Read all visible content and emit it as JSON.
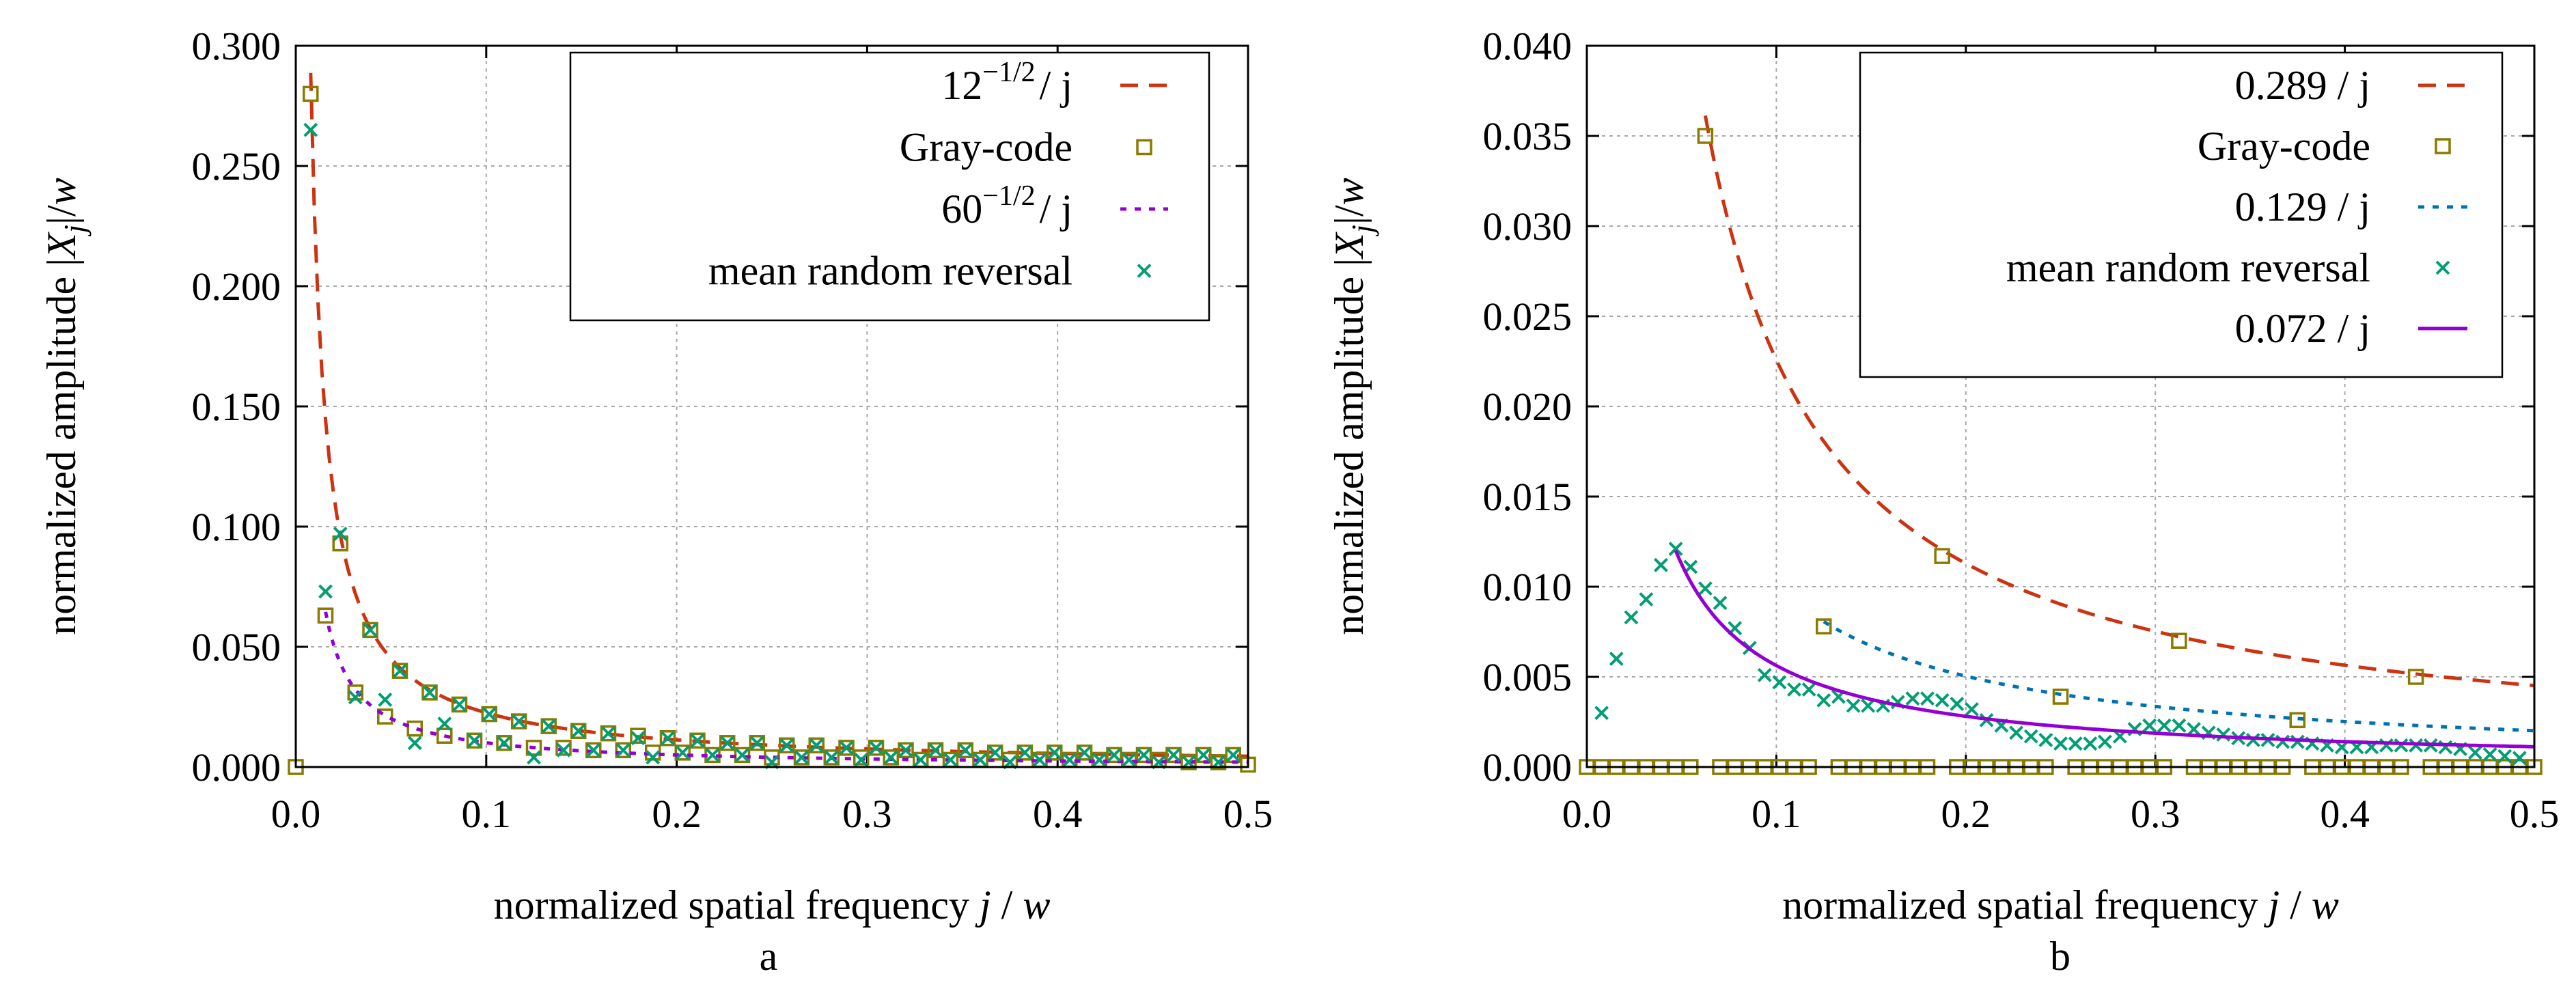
{
  "chart_data": [
    {
      "type": "scatter",
      "caption": "a",
      "xlabel": "normalized spatial frequency j / w",
      "ylabel": "normalized amplitude |X_j|/w",
      "xlim": [
        0,
        0.5
      ],
      "ylim": [
        0,
        0.3
      ],
      "xticks": [
        "0.0",
        "0.1",
        "0.2",
        "0.3",
        "0.4",
        "0.5"
      ],
      "yticks": [
        "0.000",
        "0.050",
        "0.100",
        "0.150",
        "0.200",
        "0.250",
        "0.300"
      ],
      "grid": true,
      "legend_position": "top-right",
      "series": [
        {
          "name": "12^{-1/2} / j",
          "legend_base": "12",
          "legend_exp": "−1/2",
          "legend_tail": "/ j",
          "kind": "curve",
          "coef": 0.2887,
          "scale": 128,
          "j_min": 1,
          "j_max": 64,
          "style": "dashed",
          "color": "#cc3311"
        },
        {
          "name": "Gray-code",
          "kind": "points",
          "marker": "square",
          "color": "#8a7a00",
          "x": [
            0,
            0.0078,
            0.0156,
            0.0234,
            0.0313,
            0.0391,
            0.0469,
            0.0547,
            0.0625,
            0.0703,
            0.0781,
            0.0859,
            0.0938,
            0.1016,
            0.1094,
            0.1172,
            0.125,
            0.1328,
            0.1406,
            0.1484,
            0.1563,
            0.1641,
            0.1719,
            0.1797,
            0.1875,
            0.1953,
            0.2031,
            0.2109,
            0.2188,
            0.2266,
            0.2344,
            0.2422,
            0.25,
            0.2578,
            0.2656,
            0.2734,
            0.2813,
            0.2891,
            0.2969,
            0.3047,
            0.3125,
            0.3203,
            0.3281,
            0.3359,
            0.3438,
            0.3516,
            0.3594,
            0.3672,
            0.375,
            0.3828,
            0.3906,
            0.3984,
            0.4063,
            0.4141,
            0.4219,
            0.4297,
            0.4375,
            0.4453,
            0.4531,
            0.4609,
            0.4688,
            0.4766,
            0.4844,
            0.4922,
            0.5
          ],
          "y": [
            0,
            0.28,
            0.063,
            0.093,
            0.031,
            0.057,
            0.021,
            0.04,
            0.016,
            0.031,
            0.013,
            0.026,
            0.011,
            0.022,
            0.01,
            0.019,
            0.008,
            0.017,
            0.008,
            0.015,
            0.007,
            0.014,
            0.007,
            0.013,
            0.006,
            0.012,
            0.006,
            0.011,
            0.005,
            0.01,
            0.005,
            0.01,
            0.004,
            0.009,
            0.004,
            0.009,
            0.004,
            0.008,
            0.004,
            0.008,
            0.004,
            0.007,
            0.003,
            0.007,
            0.003,
            0.007,
            0.003,
            0.006,
            0.003,
            0.006,
            0.003,
            0.006,
            0.003,
            0.006,
            0.003,
            0.005,
            0.003,
            0.005,
            0.003,
            0.005,
            0.002,
            0.005,
            0.002,
            0.005,
            0.001
          ]
        },
        {
          "name": "60^{-1/2} / j",
          "legend_base": "60",
          "legend_exp": "−1/2",
          "legend_tail": "/ j",
          "kind": "curve",
          "coef": 0.1291,
          "scale": 128,
          "j_min": 2,
          "j_max": 64,
          "style": "dotted",
          "color": "#9400d3"
        },
        {
          "name": "mean random reversal",
          "kind": "points",
          "marker": "cross",
          "color": "#009e73",
          "x": [
            0.0078,
            0.0156,
            0.0234,
            0.0313,
            0.0391,
            0.0469,
            0.0547,
            0.0625,
            0.0703,
            0.0781,
            0.0859,
            0.0938,
            0.1016,
            0.1094,
            0.1172,
            0.125,
            0.1328,
            0.1406,
            0.1484,
            0.1563,
            0.1641,
            0.1719,
            0.1797,
            0.1875,
            0.1953,
            0.2031,
            0.2109,
            0.2188,
            0.2266,
            0.2344,
            0.2422,
            0.25,
            0.2578,
            0.2656,
            0.2734,
            0.2813,
            0.2891,
            0.2969,
            0.3047,
            0.3125,
            0.3203,
            0.3281,
            0.3359,
            0.3438,
            0.3516,
            0.3594,
            0.3672,
            0.375,
            0.3828,
            0.3906,
            0.3984,
            0.4063,
            0.4141,
            0.4219,
            0.4297,
            0.4375,
            0.4453,
            0.4531,
            0.4609,
            0.4688,
            0.4766,
            0.4844,
            0.4922
          ],
          "y": [
            0.265,
            0.073,
            0.097,
            0.029,
            0.057,
            0.028,
            0.04,
            0.01,
            0.031,
            0.018,
            0.026,
            0.011,
            0.022,
            0.01,
            0.019,
            0.004,
            0.017,
            0.007,
            0.015,
            0.007,
            0.014,
            0.007,
            0.012,
            0.004,
            0.012,
            0.006,
            0.011,
            0.005,
            0.01,
            0.005,
            0.01,
            0.002,
            0.009,
            0.004,
            0.009,
            0.004,
            0.008,
            0.003,
            0.008,
            0.004,
            0.007,
            0.003,
            0.007,
            0.003,
            0.007,
            0.003,
            0.006,
            0.002,
            0.006,
            0.003,
            0.006,
            0.003,
            0.006,
            0.003,
            0.005,
            0.003,
            0.005,
            0.002,
            0.005,
            0.002,
            0.005,
            0.002,
            0.005
          ]
        }
      ]
    },
    {
      "type": "scatter",
      "caption": "b",
      "xlabel": "normalized spatial frequency j / w",
      "ylabel": "normalized amplitude |X_j|/w",
      "xlim": [
        0,
        0.5
      ],
      "ylim": [
        0,
        0.04
      ],
      "xticks": [
        "0.0",
        "0.1",
        "0.2",
        "0.3",
        "0.4",
        "0.5"
      ],
      "yticks": [
        "0.000",
        "0.005",
        "0.010",
        "0.015",
        "0.020",
        "0.025",
        "0.030",
        "0.035",
        "0.040"
      ],
      "grid": true,
      "legend_position": "top-right",
      "series": [
        {
          "name": "0.289 / j",
          "kind": "curve",
          "coef": 0.289,
          "scale": 128,
          "j_min": 8,
          "j_max": 64,
          "style": "dashed",
          "color": "#cc3311"
        },
        {
          "name": "Gray-code",
          "kind": "points",
          "marker": "square",
          "color": "#8a7a00",
          "x": [
            0,
            0.0078,
            0.0156,
            0.0234,
            0.0313,
            0.0391,
            0.0469,
            0.0547,
            0.0625,
            0.0703,
            0.0781,
            0.0859,
            0.0938,
            0.1016,
            0.1094,
            0.1172,
            0.125,
            0.1328,
            0.1406,
            0.1484,
            0.1563,
            0.1641,
            0.1719,
            0.1797,
            0.1875,
            0.1953,
            0.2031,
            0.2109,
            0.2188,
            0.2266,
            0.2344,
            0.2422,
            0.25,
            0.2578,
            0.2656,
            0.2734,
            0.2813,
            0.2891,
            0.2969,
            0.3047,
            0.3125,
            0.3203,
            0.3281,
            0.3359,
            0.3438,
            0.3516,
            0.3594,
            0.3672,
            0.375,
            0.3828,
            0.3906,
            0.3984,
            0.4063,
            0.4141,
            0.4219,
            0.4297,
            0.4375,
            0.4453,
            0.4531,
            0.4609,
            0.4688,
            0.4766,
            0.4844,
            0.4922,
            0.5
          ],
          "y": [
            0,
            0,
            0,
            0,
            0,
            0,
            0,
            0,
            0.035,
            0,
            0,
            0,
            0,
            0,
            0,
            0,
            0.0078,
            0,
            0,
            0,
            0,
            0,
            0,
            0,
            0.0117,
            0,
            0,
            0,
            0,
            0,
            0,
            0,
            0.0039,
            0,
            0,
            0,
            0,
            0,
            0,
            0,
            0.007,
            0,
            0,
            0,
            0,
            0,
            0,
            0,
            0.0026,
            0,
            0,
            0,
            0,
            0,
            0,
            0,
            0.005,
            0,
            0,
            0,
            0,
            0,
            0,
            0,
            0
          ]
        },
        {
          "name": "0.129 / j",
          "kind": "curve",
          "coef": 0.129,
          "scale": 128,
          "j_min": 16,
          "j_max": 64,
          "style": "dotted",
          "color": "#0072b2"
        },
        {
          "name": "mean random reversal",
          "kind": "points",
          "marker": "cross",
          "color": "#009e73",
          "x": [
            0.0078,
            0.0156,
            0.0234,
            0.0313,
            0.0391,
            0.0469,
            0.0547,
            0.0625,
            0.0703,
            0.0781,
            0.0859,
            0.0938,
            0.1016,
            0.1094,
            0.1172,
            0.125,
            0.1328,
            0.1406,
            0.1484,
            0.1563,
            0.1641,
            0.1719,
            0.1797,
            0.1875,
            0.1953,
            0.2031,
            0.2109,
            0.2188,
            0.2266,
            0.2344,
            0.2422,
            0.25,
            0.2578,
            0.2656,
            0.2734,
            0.2813,
            0.2891,
            0.2969,
            0.3047,
            0.3125,
            0.3203,
            0.3281,
            0.3359,
            0.3438,
            0.3516,
            0.3594,
            0.3672,
            0.375,
            0.3828,
            0.3906,
            0.3984,
            0.4063,
            0.4141,
            0.4219,
            0.4297,
            0.4375,
            0.4453,
            0.4531,
            0.4609,
            0.4688,
            0.4766,
            0.4844,
            0.4922
          ],
          "y": [
            0.003,
            0.006,
            0.0083,
            0.0093,
            0.0112,
            0.0121,
            0.0111,
            0.0099,
            0.0091,
            0.0077,
            0.0066,
            0.0051,
            0.0047,
            0.0043,
            0.0043,
            0.0037,
            0.0039,
            0.0034,
            0.0034,
            0.0034,
            0.0036,
            0.0038,
            0.0038,
            0.0037,
            0.0035,
            0.0032,
            0.0026,
            0.0023,
            0.0019,
            0.0017,
            0.0015,
            0.0013,
            0.0013,
            0.0013,
            0.0014,
            0.0017,
            0.0021,
            0.0023,
            0.0023,
            0.0023,
            0.0021,
            0.0019,
            0.0018,
            0.0016,
            0.0015,
            0.0015,
            0.0014,
            0.0014,
            0.0013,
            0.0012,
            0.0011,
            0.0011,
            0.0011,
            0.0012,
            0.0012,
            0.0012,
            0.0012,
            0.0011,
            0.001,
            0.0008,
            0.0007,
            0.0006,
            0.0005
          ]
        },
        {
          "name": "0.072 / j",
          "kind": "curve",
          "coef": 0.072,
          "scale": 128,
          "j_min": 6,
          "j_max": 64,
          "style": "solid",
          "color": "#9400d3"
        }
      ]
    }
  ]
}
